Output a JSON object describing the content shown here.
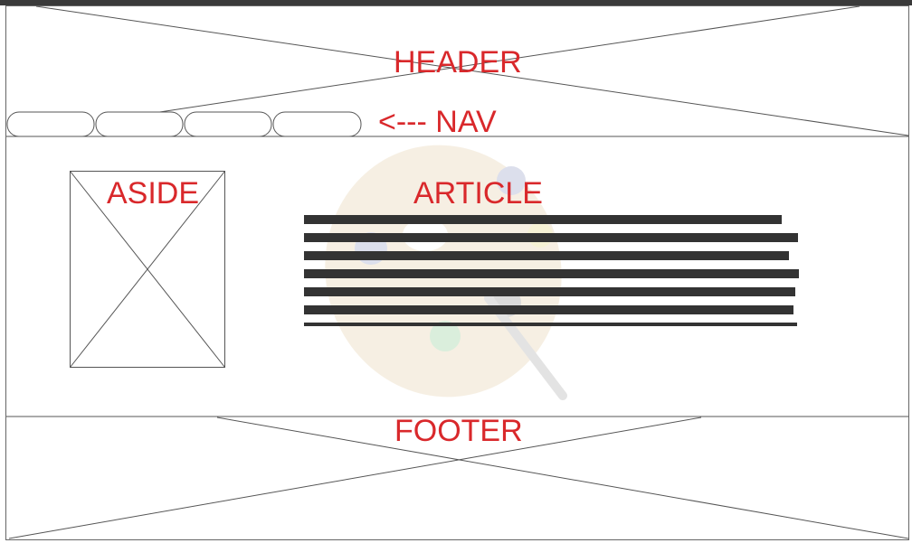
{
  "labels": {
    "header": "HEADER",
    "nav": "<--- NAV",
    "aside": "ASIDE",
    "article": "ARTICLE",
    "footer": "FOOTER"
  },
  "nav_tabs": {
    "count": 4
  },
  "article_text_lines": {
    "count": 7
  },
  "colors": {
    "label": "#d9282b",
    "line": "#555555",
    "text_block": "#333333",
    "top_bar": "#3a3a3a"
  },
  "background_icon": "palette-icon"
}
